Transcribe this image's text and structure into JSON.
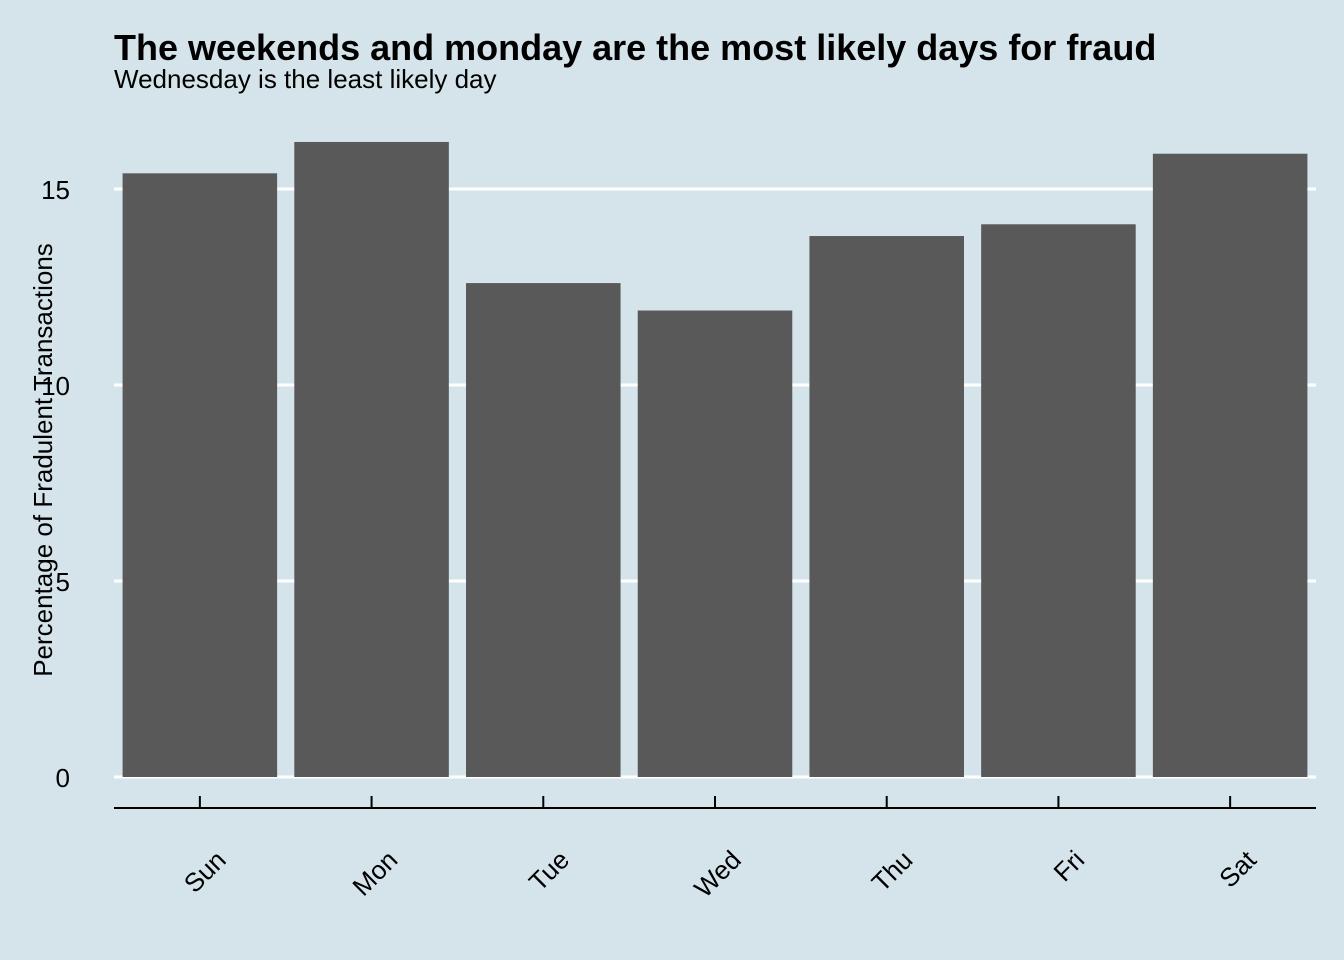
{
  "colors": {
    "background": "#d5e4eb",
    "bar": "#595959",
    "grid": "#ffffff",
    "axis": "#000000",
    "text": "#000000"
  },
  "chart_data": {
    "type": "bar",
    "title": "The weekends and monday are the most likely days for fraud",
    "subtitle": "Wednesday is the least likely day",
    "xlabel": "",
    "ylabel": "Percentage of Fradulent Transactions",
    "categories": [
      "Sun",
      "Mon",
      "Tue",
      "Wed",
      "Thu",
      "Fri",
      "Sat"
    ],
    "values": [
      15.4,
      16.2,
      12.6,
      11.9,
      13.8,
      14.1,
      15.9
    ],
    "ylim": [
      0,
      16.2
    ],
    "yticks": [
      0,
      5,
      10,
      15
    ],
    "ytick_labels": [
      "0",
      "5",
      "10",
      "15"
    ],
    "grid": "horizontal",
    "legend": "none"
  }
}
